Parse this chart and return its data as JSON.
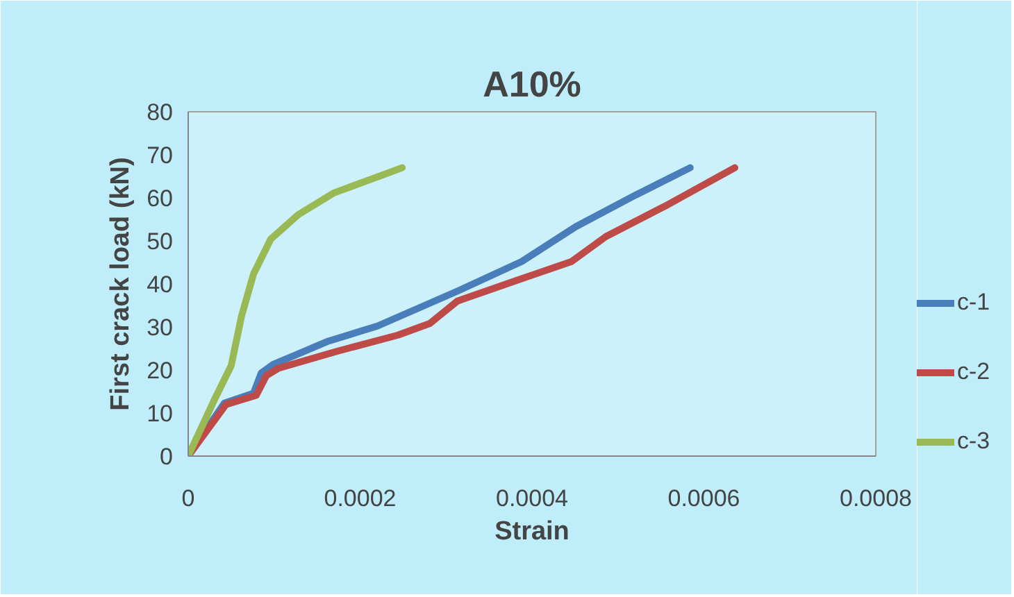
{
  "chart_data": {
    "type": "line",
    "title": "A10%",
    "xlabel": "Strain",
    "ylabel": "First crack load (kN)",
    "xlim": [
      0,
      0.0008
    ],
    "xticks": [
      0,
      0.0002,
      0.0004,
      0.0006,
      0.0008
    ],
    "ylim": [
      0,
      80
    ],
    "yticks": [
      0,
      10,
      20,
      30,
      40,
      50,
      60,
      70,
      80
    ],
    "grid": false,
    "legend": "right",
    "marker": "none",
    "line_style": "solid",
    "series": [
      {
        "name": "c-1",
        "color": "#4a7ebb",
        "x": [
          0,
          4.2e-05,
          7.6e-05,
          8.5e-05,
          9.9e-05,
          0.000163,
          0.00022,
          0.000313,
          0.000388,
          0.000451,
          0.000521,
          0.000584
        ],
        "values": [
          0,
          12.3,
          14.6,
          19.3,
          21.3,
          26.7,
          30.2,
          38.3,
          45.2,
          53.3,
          60.7,
          67
        ]
      },
      {
        "name": "c-2",
        "color": "#be4b48",
        "x": [
          0,
          4.4e-05,
          7.9e-05,
          9.1e-05,
          0.000105,
          0.000174,
          0.000244,
          0.000281,
          0.000313,
          0.000382,
          0.000446,
          0.000486,
          0.000555,
          0.000636
        ],
        "values": [
          0,
          12,
          14.1,
          18.7,
          20.4,
          24.4,
          28.1,
          30.8,
          36,
          40.8,
          45.2,
          51,
          58.1,
          67
        ]
      },
      {
        "name": "c-3",
        "color": "#98b954",
        "x": [
          0,
          3e-05,
          5e-05,
          6.2e-05,
          7.6e-05,
          9.6e-05,
          0.000128,
          0.000169,
          0.000249
        ],
        "values": [
          0,
          12.9,
          21,
          32.5,
          42.3,
          50.4,
          56.1,
          61.1,
          67
        ]
      }
    ]
  }
}
